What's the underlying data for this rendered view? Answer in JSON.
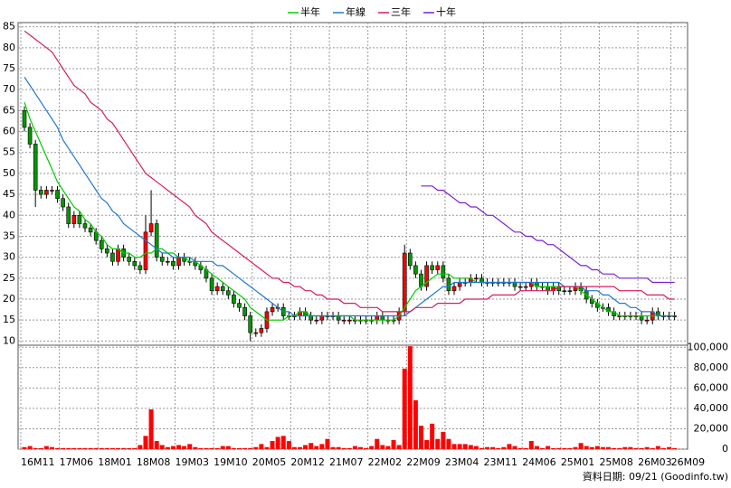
{
  "chart_data": [
    {
      "type": "candlestick",
      "up_color": "#ff0000",
      "down_color": "#009900",
      "open": [
        65,
        61,
        57,
        46,
        45,
        46,
        46,
        44,
        42,
        38,
        40,
        38,
        37,
        36,
        34,
        32,
        31,
        29,
        32,
        30,
        29,
        28,
        27,
        36,
        38,
        30,
        29,
        29,
        28,
        30,
        29,
        29,
        28,
        27,
        25,
        22,
        23,
        22,
        21,
        19,
        18,
        16,
        12,
        12,
        13,
        17,
        18,
        18,
        16,
        16,
        16,
        17,
        16,
        15,
        15,
        16,
        16,
        16,
        15,
        15,
        15,
        15,
        15,
        15,
        15,
        16,
        15,
        15,
        15,
        17,
        31,
        28,
        26,
        23,
        28,
        27,
        28,
        25,
        22,
        23,
        24,
        24,
        25,
        25,
        24,
        24,
        24,
        24,
        24,
        24,
        23,
        23,
        23,
        24,
        23,
        23,
        22,
        23,
        22,
        22,
        22,
        23,
        22,
        20,
        19,
        18,
        18,
        17,
        16,
        16,
        16,
        16,
        16,
        15,
        15,
        17,
        16,
        16,
        16
      ],
      "high": [
        66,
        62,
        58,
        47,
        47,
        47,
        47,
        45,
        43,
        41,
        41,
        39,
        38,
        37,
        35,
        33,
        32,
        33,
        33,
        31,
        30,
        29,
        40,
        46,
        39,
        31,
        30,
        30,
        31,
        31,
        30,
        30,
        29,
        28,
        26,
        24,
        24,
        23,
        22,
        20,
        19,
        17,
        13,
        14,
        18,
        19,
        19,
        19,
        17,
        17,
        18,
        18,
        17,
        16,
        17,
        17,
        17,
        17,
        16,
        16,
        16,
        16,
        16,
        16,
        17,
        17,
        16,
        16,
        18,
        33,
        32,
        29,
        27,
        29,
        29,
        29,
        29,
        26,
        24,
        25,
        25,
        26,
        26,
        26,
        25,
        25,
        25,
        25,
        25,
        25,
        24,
        24,
        25,
        25,
        24,
        24,
        24,
        24,
        23,
        23,
        24,
        24,
        23,
        21,
        20,
        19,
        19,
        18,
        17,
        17,
        17,
        17,
        17,
        16,
        18,
        18,
        17,
        17,
        17
      ],
      "low": [
        60,
        56,
        42,
        44,
        44,
        45,
        43,
        41,
        37,
        37,
        37,
        36,
        35,
        33,
        31,
        30,
        28,
        28,
        29,
        28,
        27,
        26,
        26,
        35,
        29,
        28,
        28,
        27,
        27,
        28,
        28,
        27,
        26,
        24,
        21,
        21,
        21,
        20,
        18,
        17,
        15,
        10,
        11,
        11,
        12,
        16,
        17,
        15,
        15,
        15,
        15,
        15,
        14,
        14,
        14,
        15,
        15,
        14,
        14,
        14,
        14,
        14,
        14,
        14,
        14,
        14,
        14,
        14,
        14,
        16,
        27,
        25,
        22,
        22,
        26,
        26,
        24,
        21,
        21,
        22,
        23,
        23,
        24,
        23,
        23,
        23,
        23,
        23,
        23,
        22,
        22,
        22,
        22,
        22,
        22,
        21,
        21,
        21,
        21,
        21,
        21,
        21,
        19,
        18,
        17,
        17,
        16,
        15,
        15,
        15,
        15,
        15,
        14,
        14,
        14,
        15,
        15,
        15,
        15
      ],
      "close": [
        61,
        57,
        46,
        45,
        46,
        46,
        44,
        42,
        38,
        40,
        38,
        37,
        36,
        34,
        32,
        31,
        29,
        32,
        30,
        29,
        28,
        27,
        36,
        38,
        30,
        29,
        29,
        28,
        30,
        29,
        29,
        28,
        27,
        25,
        22,
        23,
        22,
        21,
        19,
        18,
        16,
        12,
        12,
        13,
        17,
        18,
        18,
        16,
        16,
        16,
        17,
        16,
        15,
        15,
        16,
        16,
        16,
        15,
        15,
        15,
        15,
        15,
        15,
        15,
        16,
        15,
        15,
        15,
        17,
        31,
        28,
        26,
        23,
        28,
        27,
        28,
        25,
        22,
        23,
        24,
        24,
        25,
        25,
        24,
        24,
        24,
        24,
        24,
        24,
        23,
        23,
        23,
        24,
        23,
        23,
        22,
        23,
        22,
        22,
        22,
        23,
        22,
        20,
        19,
        18,
        18,
        17,
        16,
        16,
        16,
        16,
        16,
        15,
        15,
        17,
        16,
        16,
        16,
        16
      ],
      "lines": [
        {
          "name": "半年",
          "color": "#00cc00",
          "values": [
            67,
            63,
            60,
            57,
            54,
            51,
            48,
            46,
            44,
            42,
            41,
            39,
            38,
            36,
            35,
            33,
            32,
            32,
            31,
            31,
            30,
            30,
            31,
            31,
            32,
            32,
            31,
            31,
            30,
            30,
            29,
            29,
            28,
            27,
            26,
            25,
            24,
            23,
            22,
            21,
            20,
            18,
            17,
            16,
            15,
            15,
            15,
            15,
            16,
            16,
            17,
            17,
            16,
            16,
            16,
            16,
            16,
            16,
            16,
            16,
            15,
            15,
            15,
            15,
            15,
            15,
            15,
            15,
            16,
            18,
            20,
            22,
            23,
            24,
            25,
            26,
            26,
            26,
            25,
            25,
            25,
            25,
            24,
            24,
            24,
            24,
            24,
            24,
            24,
            24,
            24,
            24,
            24,
            23,
            23,
            23,
            23,
            23,
            23,
            23,
            23,
            22,
            21,
            20,
            19,
            18,
            17,
            17,
            16,
            16,
            16,
            16,
            16,
            16,
            16,
            16,
            16,
            16,
            16
          ]
        },
        {
          "name": "年線",
          "color": "#1e78d2",
          "values": [
            73,
            71,
            69,
            67,
            65,
            63,
            61,
            58,
            56,
            54,
            52,
            50,
            48,
            46,
            44,
            43,
            41,
            40,
            38,
            37,
            36,
            35,
            34,
            33,
            32,
            31,
            31,
            30,
            30,
            30,
            30,
            29,
            29,
            29,
            29,
            28,
            28,
            27,
            26,
            25,
            24,
            23,
            22,
            21,
            20,
            19,
            18,
            17,
            17,
            16,
            16,
            16,
            16,
            16,
            16,
            16,
            16,
            16,
            16,
            16,
            16,
            16,
            16,
            16,
            16,
            16,
            16,
            16,
            16,
            16,
            17,
            18,
            19,
            20,
            21,
            22,
            23,
            23,
            24,
            24,
            24,
            24,
            24,
            24,
            24,
            24,
            24,
            24,
            24,
            24,
            24,
            24,
            24,
            24,
            24,
            24,
            24,
            24,
            23,
            23,
            23,
            23,
            22,
            22,
            22,
            21,
            21,
            20,
            19,
            19,
            18,
            18,
            17,
            17,
            17,
            16,
            16,
            16,
            16
          ]
        },
        {
          "name": "三年",
          "color": "#d81b60",
          "values": [
            84,
            83,
            82,
            81,
            80,
            79,
            77,
            75,
            73,
            71,
            70,
            69,
            67,
            66,
            65,
            63,
            62,
            60,
            58,
            56,
            54,
            52,
            50,
            49,
            48,
            47,
            46,
            45,
            44,
            43,
            42,
            40,
            39,
            38,
            36,
            35,
            34,
            33,
            32,
            31,
            30,
            29,
            28,
            27,
            26,
            25,
            25,
            24,
            24,
            23,
            23,
            22,
            22,
            21,
            21,
            20,
            20,
            20,
            19,
            19,
            19,
            18,
            18,
            18,
            18,
            17,
            17,
            17,
            17,
            17,
            17,
            18,
            18,
            18,
            18,
            19,
            19,
            19,
            19,
            19,
            20,
            20,
            20,
            20,
            20,
            21,
            21,
            21,
            21,
            21,
            22,
            22,
            22,
            22,
            22,
            22,
            22,
            23,
            23,
            23,
            23,
            23,
            23,
            23,
            23,
            23,
            23,
            23,
            22,
            22,
            22,
            22,
            22,
            21,
            21,
            21,
            21,
            20,
            20
          ]
        },
        {
          "name": "十年",
          "color": "#7b1fd6",
          "values": [
            null,
            null,
            null,
            null,
            null,
            null,
            null,
            null,
            null,
            null,
            null,
            null,
            null,
            null,
            null,
            null,
            null,
            null,
            null,
            null,
            null,
            null,
            null,
            null,
            null,
            null,
            null,
            null,
            null,
            null,
            null,
            null,
            null,
            null,
            null,
            null,
            null,
            null,
            null,
            null,
            null,
            null,
            null,
            null,
            null,
            null,
            null,
            null,
            null,
            null,
            null,
            null,
            null,
            null,
            null,
            null,
            null,
            null,
            null,
            null,
            null,
            null,
            null,
            null,
            null,
            null,
            null,
            null,
            null,
            null,
            null,
            null,
            47,
            47,
            47,
            46,
            46,
            45,
            44,
            43,
            43,
            42,
            42,
            41,
            40,
            40,
            39,
            38,
            37,
            36,
            36,
            35,
            35,
            34,
            34,
            33,
            33,
            32,
            31,
            30,
            29,
            28,
            28,
            27,
            27,
            26,
            26,
            26,
            25,
            25,
            25,
            25,
            25,
            25,
            24,
            24,
            24,
            24,
            24
          ]
        }
      ],
      "ylim": [
        9,
        86
      ],
      "yticks": [
        10,
        15,
        20,
        25,
        30,
        35,
        40,
        45,
        50,
        55,
        60,
        65,
        70,
        75,
        80,
        85
      ],
      "grid": true,
      "legend": "top"
    },
    {
      "type": "bar",
      "color": "#ff0000",
      "y_axis_side": "right",
      "categories": [
        "16M11",
        null,
        null,
        null,
        null,
        null,
        null,
        "17M06",
        null,
        null,
        null,
        null,
        null,
        null,
        "18M01",
        null,
        null,
        null,
        null,
        null,
        null,
        "18M08",
        null,
        null,
        null,
        null,
        null,
        null,
        "19M03",
        null,
        null,
        null,
        null,
        null,
        null,
        "19M10",
        null,
        null,
        null,
        null,
        null,
        null,
        "20M05",
        null,
        null,
        null,
        null,
        null,
        null,
        "20M12",
        null,
        null,
        null,
        null,
        null,
        null,
        "21M07",
        null,
        null,
        null,
        null,
        null,
        null,
        "22M02",
        null,
        null,
        null,
        null,
        null,
        null,
        "22M09",
        null,
        null,
        null,
        null,
        null,
        null,
        "23M04",
        null,
        null,
        null,
        null,
        null,
        null,
        "23M11",
        null,
        null,
        null,
        null,
        null,
        null,
        "24M06",
        null,
        null,
        null,
        null,
        null,
        null,
        "25M01",
        null,
        null,
        null,
        null,
        null,
        null,
        "25M08",
        null,
        null,
        null,
        null,
        null,
        null,
        "26M03",
        null,
        null,
        null,
        null,
        null,
        "26M09"
      ],
      "values": [
        2000,
        3000,
        1000,
        1000,
        3000,
        2000,
        1000,
        1000,
        1000,
        1000,
        1000,
        1000,
        1000,
        1000,
        1000,
        1000,
        1000,
        1000,
        1000,
        1000,
        1000,
        4000,
        13000,
        39000,
        8000,
        4000,
        2000,
        3000,
        4000,
        3000,
        5000,
        2000,
        1000,
        1000,
        1000,
        1000,
        3000,
        3000,
        1000,
        1000,
        1000,
        1000,
        2000,
        5000,
        2000,
        8000,
        12000,
        13000,
        8000,
        2000,
        2000,
        4000,
        6000,
        3000,
        5000,
        10000,
        2000,
        2000,
        1000,
        1000,
        3000,
        2000,
        1000,
        3000,
        10000,
        4000,
        3000,
        9000,
        4000,
        79000,
        101000,
        48000,
        23000,
        9000,
        25000,
        10000,
        17000,
        10000,
        5000,
        5000,
        5000,
        4000,
        3000,
        1000,
        2000,
        2000,
        1000,
        2000,
        5000,
        3000,
        1000,
        1000,
        8000,
        3000,
        1000,
        3000,
        1000,
        1000,
        1000,
        1000,
        2000,
        6000,
        3000,
        2000,
        3000,
        2000,
        2000,
        1000,
        1000,
        2000,
        2000,
        1000,
        1000,
        2000,
        1000,
        3000,
        1000,
        2000,
        1000
      ],
      "ylim": [
        0,
        102000
      ],
      "yticks": [
        0,
        {
          "value": 20000,
          "label": "20,000"
        },
        {
          "value": 40000,
          "label": "40,000"
        },
        {
          "value": 60000,
          "label": "60,000"
        },
        {
          "value": 80000,
          "label": "80,000"
        },
        {
          "value": 100000,
          "label": "100,000"
        }
      ],
      "grid": true,
      "source_note": "資料日期: 09/21  (Goodinfo.tw)"
    }
  ]
}
